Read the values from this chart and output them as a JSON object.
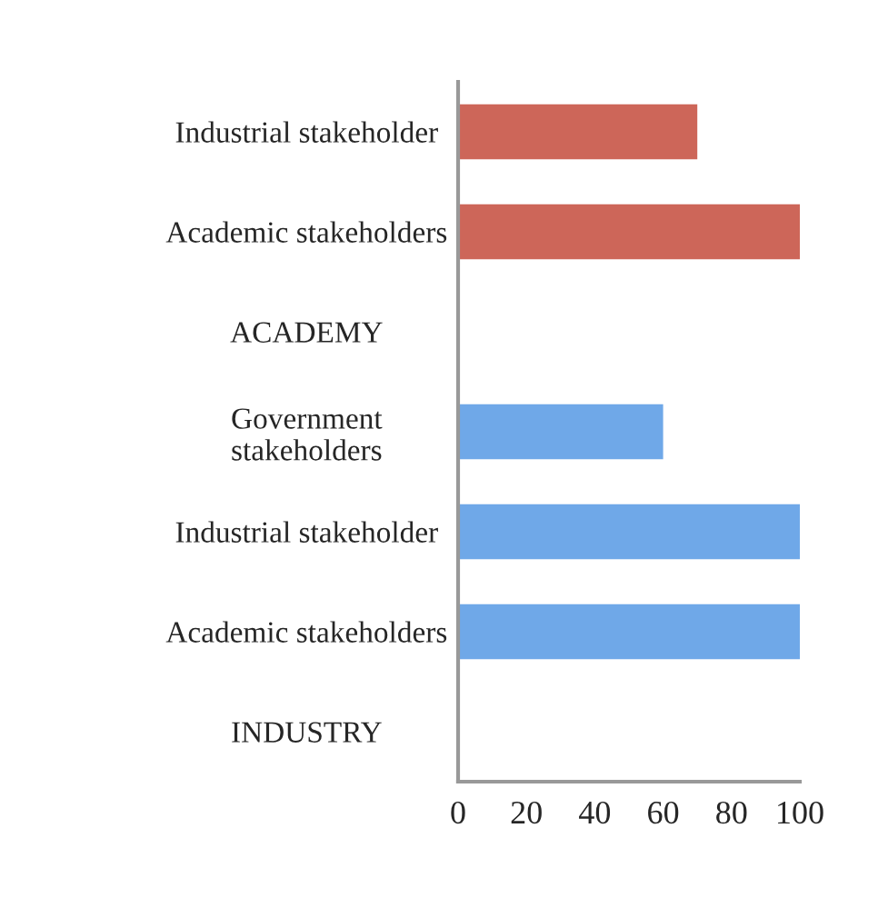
{
  "chart_data": {
    "type": "bar",
    "orientation": "horizontal",
    "categories": [
      "Industrial stakeholder",
      "Academic stakeholders",
      "ACADEMY",
      "Government\nstakeholders",
      "Industrial stakeholder",
      "Academic stakeholders",
      "INDUSTRY"
    ],
    "values": [
      70,
      100,
      null,
      60,
      100,
      100,
      null
    ],
    "colors": [
      "#cd6659",
      "#cd6659",
      "#cd6659",
      "#6fa8e8",
      "#6fa8e8",
      "#6fa8e8",
      "#6fa8e8"
    ],
    "xlim": [
      0,
      100
    ],
    "xticks": [
      0,
      20,
      40,
      60,
      80,
      100
    ],
    "grid": false
  }
}
